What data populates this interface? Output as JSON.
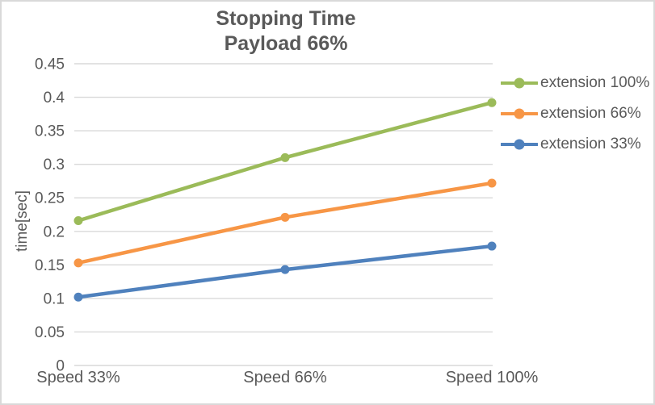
{
  "chart": {
    "title_lines": [
      "Stopping Time",
      "Payload 66%"
    ],
    "ylabel": "time[sec]"
  },
  "chart_data": {
    "type": "line",
    "title": "Stopping Time",
    "subtitle": "Payload 66%",
    "categories": [
      "Speed 33%",
      "Speed 66%",
      "Speed 100%"
    ],
    "series": [
      {
        "name": "extension 100%",
        "color": "#9bbb59",
        "values": [
          0.216,
          0.31,
          0.392
        ]
      },
      {
        "name": "extension 66%",
        "color": "#f79646",
        "values": [
          0.153,
          0.221,
          0.272
        ]
      },
      {
        "name": "extension 33%",
        "color": "#4f81bd",
        "values": [
          0.102,
          0.143,
          0.178
        ]
      }
    ],
    "xlabel": "",
    "ylabel": "time[sec]",
    "ylim": [
      0,
      0.45
    ],
    "ytick_step": 0.05,
    "ytick_labels": [
      "0",
      "0.05",
      "0.1",
      "0.15",
      "0.2",
      "0.25",
      "0.3",
      "0.35",
      "0.4",
      "0.45"
    ],
    "grid": true,
    "marker": "circle",
    "legend_position": "right",
    "colors": {
      "text": "#595959",
      "grid": "#d9d9d9",
      "background": "#ffffff",
      "border": "#d9d9d9"
    }
  }
}
